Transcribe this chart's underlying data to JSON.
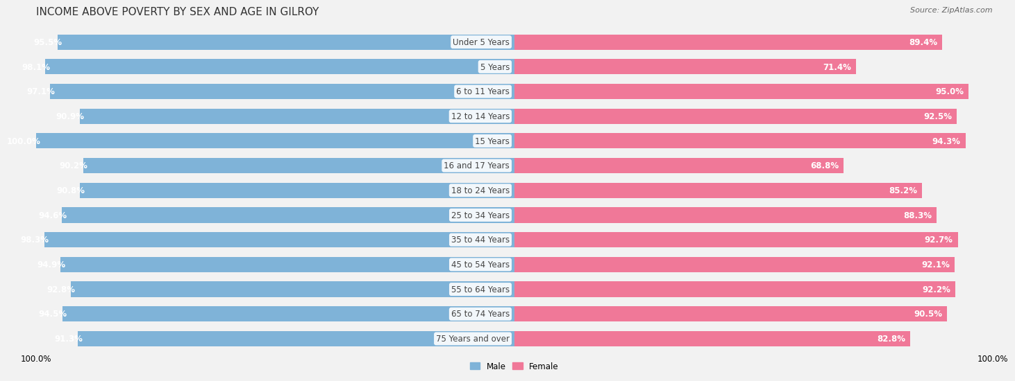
{
  "title": "INCOME ABOVE POVERTY BY SEX AND AGE IN GILROY",
  "source": "Source: ZipAtlas.com",
  "categories": [
    "Under 5 Years",
    "5 Years",
    "6 to 11 Years",
    "12 to 14 Years",
    "15 Years",
    "16 and 17 Years",
    "18 to 24 Years",
    "25 to 34 Years",
    "35 to 44 Years",
    "45 to 54 Years",
    "55 to 64 Years",
    "65 to 74 Years",
    "75 Years and over"
  ],
  "male_values": [
    95.5,
    98.1,
    97.1,
    90.9,
    100.0,
    90.2,
    90.8,
    94.6,
    98.3,
    94.9,
    92.8,
    94.5,
    91.3
  ],
  "female_values": [
    89.4,
    71.4,
    95.0,
    92.5,
    94.3,
    68.8,
    85.2,
    88.3,
    92.7,
    92.1,
    92.2,
    90.5,
    82.8
  ],
  "male_color": "#7fb3d8",
  "female_color": "#f07898",
  "male_label": "Male",
  "female_label": "Female",
  "bar_height": 0.62,
  "background_color": "#f2f2f2",
  "row_light": "#ffffff",
  "row_dark": "#e8e8e8",
  "title_fontsize": 11,
  "cat_fontsize": 8.5,
  "value_fontsize": 8.5,
  "source_fontsize": 8,
  "tick_fontsize": 8.5
}
